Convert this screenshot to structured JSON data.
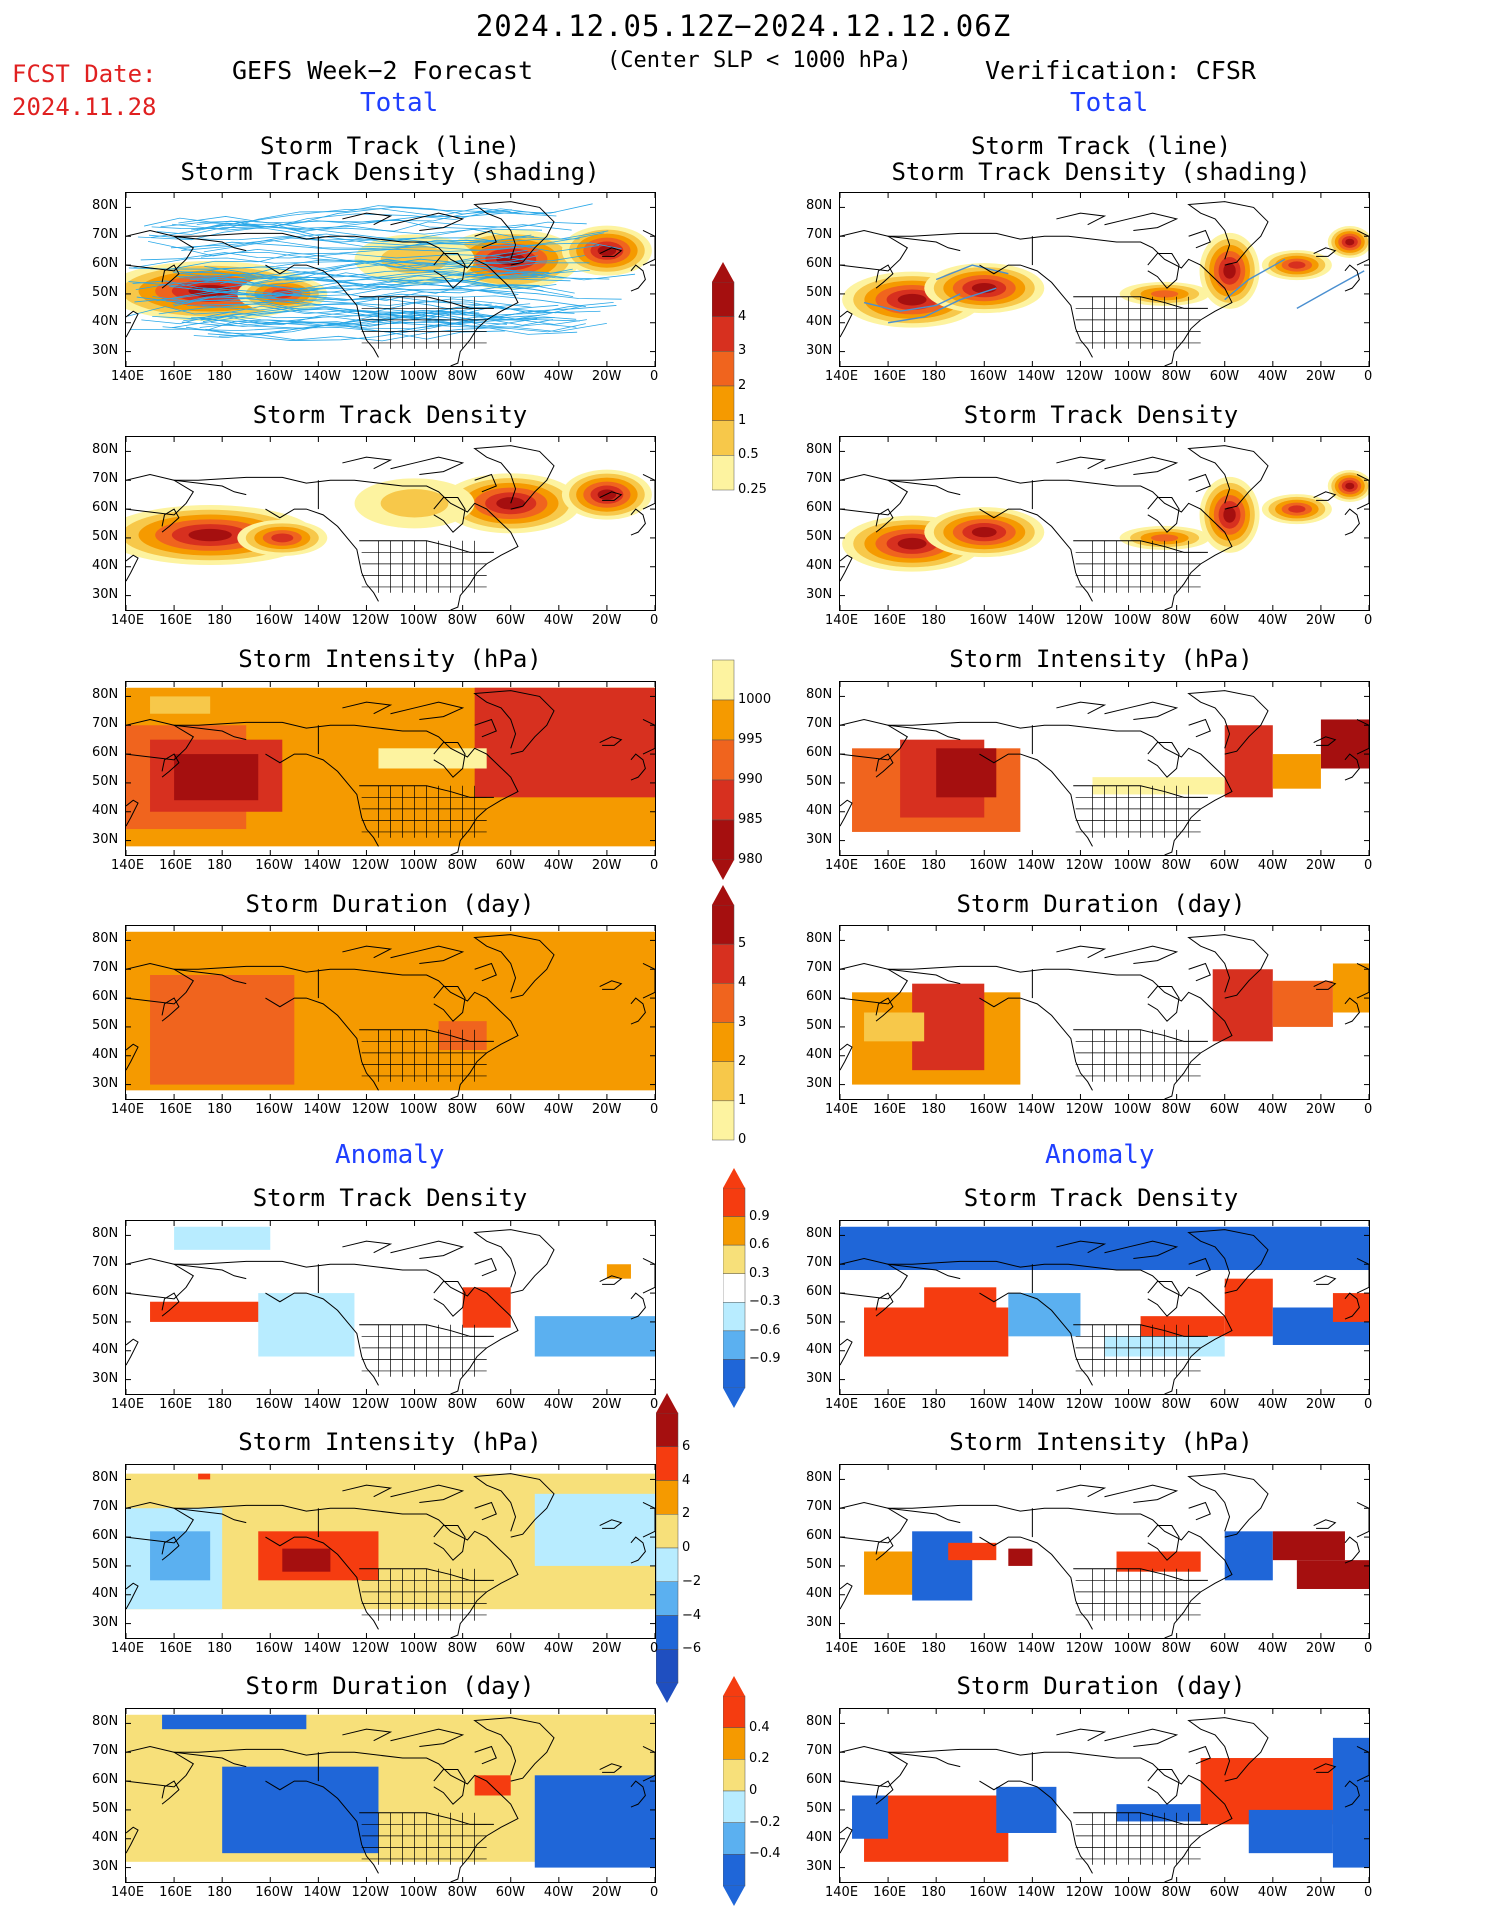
{
  "header": {
    "date_range": "2024.12.05.12Z−2024.12.12.06Z",
    "criterion": "(Center SLP < 1000 hPa)",
    "fcst_label": "FCST Date:",
    "fcst_date": "2024.11.28",
    "left_title": "GEFS Week−2 Forecast",
    "right_title": "Verification: CFSR",
    "total_label": "Total",
    "anomaly_label": "Anomaly"
  },
  "axes": {
    "x_ticks": [
      "140E",
      "160E",
      "180",
      "160W",
      "140W",
      "120W",
      "100W",
      "80W",
      "60W",
      "40W",
      "20W",
      "0"
    ],
    "y_ticks": [
      "80N",
      "70N",
      "60N",
      "50N",
      "40N",
      "30N"
    ]
  },
  "panel_titles": {
    "track": [
      "Storm Track (line)",
      "Storm Track Density (shading)"
    ],
    "density": "Storm Track Density",
    "intensity": "Storm Intensity (hPa)",
    "duration": "Storm Duration (day)"
  },
  "colorbars": {
    "density": {
      "labels": [
        "4",
        "3",
        "2",
        "1",
        "0.5",
        "0.25"
      ],
      "colors": [
        "#a50f0f",
        "#d7301f",
        "#f0641e",
        "#f59a00",
        "#f7c84a",
        "#fdf3a0"
      ]
    },
    "intensity": {
      "labels": [
        "1000",
        "995",
        "990",
        "985",
        "980"
      ],
      "colors": [
        "#fdf3a0",
        "#f59a00",
        "#f0641e",
        "#d7301f",
        "#a50f0f"
      ]
    },
    "duration": {
      "labels": [
        "5",
        "4",
        "3",
        "2",
        "1",
        "0"
      ],
      "colors": [
        "#a50f0f",
        "#d7301f",
        "#f0641e",
        "#f59a00",
        "#f7c84a",
        "#fdf3a0"
      ]
    },
    "anom_density": {
      "labels": [
        "0.9",
        "0.6",
        "0.3",
        "−0.3",
        "−0.6",
        "−0.9"
      ],
      "colors": [
        "#f53c10",
        "#f59a00",
        "#f7e07a",
        "#ffffff",
        "#b8ecff",
        "#5bb0f0",
        "#1f66d8"
      ]
    },
    "anom_intensity": {
      "labels": [
        "6",
        "4",
        "2",
        "0",
        "−2",
        "−4",
        "−6"
      ],
      "colors": [
        "#a50f0f",
        "#f53c10",
        "#f59a00",
        "#f7e07a",
        "#b8ecff",
        "#5bb0f0",
        "#1f66d8",
        "#1f4fc0"
      ]
    },
    "anom_duration": {
      "labels": [
        "0.4",
        "0.2",
        "0",
        "−0.2",
        "−0.4"
      ],
      "colors": [
        "#f53c10",
        "#f59a00",
        "#f7e07a",
        "#b8ecff",
        "#5bb0f0",
        "#1f66d8"
      ]
    }
  },
  "chart_data": [
    {
      "type": "heatmap",
      "panel": "forecast-track-density-with-tracks",
      "title": "Storm Track (line) / Storm Track Density (shading)",
      "xlim": [
        "140E",
        "0"
      ],
      "ylim": [
        "25N",
        "85N"
      ]
    },
    {
      "type": "heatmap",
      "panel": "verification-track-density-with-tracks",
      "title": "Storm Track (line) / Storm Track Density (shading)",
      "xlim": [
        "140E",
        "0"
      ],
      "ylim": [
        "25N",
        "85N"
      ]
    },
    {
      "type": "heatmap",
      "panel": "forecast-track-density",
      "title": "Storm Track Density"
    },
    {
      "type": "heatmap",
      "panel": "verification-track-density",
      "title": "Storm Track Density"
    },
    {
      "type": "heatmap",
      "panel": "forecast-intensity",
      "title": "Storm Intensity (hPa)"
    },
    {
      "type": "heatmap",
      "panel": "verification-intensity",
      "title": "Storm Intensity (hPa)"
    },
    {
      "type": "heatmap",
      "panel": "forecast-duration",
      "title": "Storm Duration (day)"
    },
    {
      "type": "heatmap",
      "panel": "verification-duration",
      "title": "Storm Duration (day)"
    },
    {
      "type": "heatmap",
      "panel": "forecast-anomaly-density",
      "title": "Storm Track Density"
    },
    {
      "type": "heatmap",
      "panel": "verification-anomaly-density",
      "title": "Storm Track Density"
    },
    {
      "type": "heatmap",
      "panel": "forecast-anomaly-intensity",
      "title": "Storm Intensity (hPa)"
    },
    {
      "type": "heatmap",
      "panel": "verification-anomaly-intensity",
      "title": "Storm Intensity (hPa)"
    },
    {
      "type": "heatmap",
      "panel": "forecast-anomaly-duration",
      "title": "Storm Duration (day)"
    },
    {
      "type": "heatmap",
      "panel": "verification-anomaly-duration",
      "title": "Storm Duration (day)"
    }
  ]
}
